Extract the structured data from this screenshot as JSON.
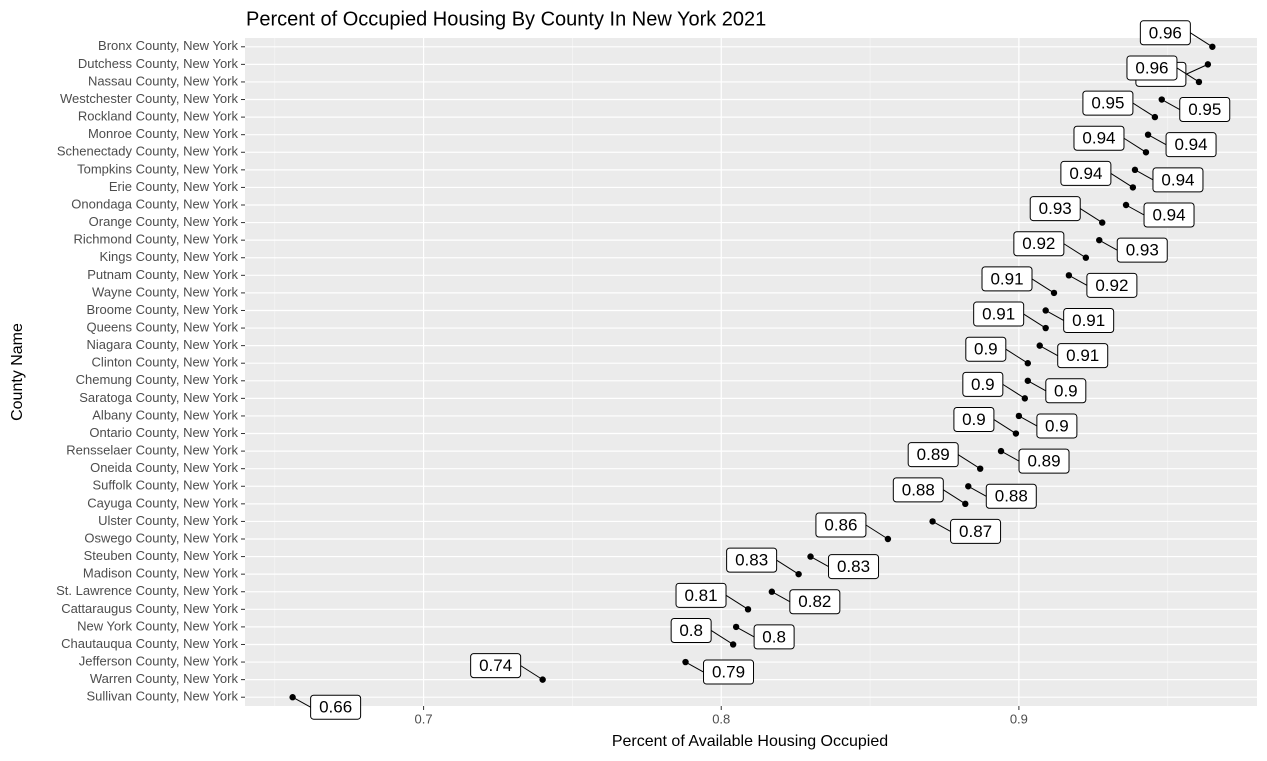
{
  "chart_data": {
    "type": "scatter",
    "title": "Percent of Occupied Housing By County In New York 2021",
    "x_label": "Percent of Available Housing Occupied",
    "y_label": "County Name",
    "categories": [
      "Bronx County, New York",
      "Dutchess County, New York",
      "Nassau County, New York",
      "Westchester County, New York",
      "Rockland County, New York",
      "Monroe County, New York",
      "Schenectady County, New York",
      "Tompkins County, New York",
      "Erie County, New York",
      "Onondaga County, New York",
      "Orange County, New York",
      "Richmond County, New York",
      "Kings County, New York",
      "Putnam County, New York",
      "Wayne County, New York",
      "Broome County, New York",
      "Queens County, New York",
      "Niagara County, New York",
      "Clinton County, New York",
      "Chemung County, New York",
      "Saratoga County, New York",
      "Albany County, New York",
      "Ontario County, New York",
      "Rensselaer County, New York",
      "Oneida County, New York",
      "Suffolk County, New York",
      "Cayuga County, New York",
      "Ulster County, New York",
      "Oswego County, New York",
      "Steuben County, New York",
      "Madison County, New York",
      "St. Lawrence County, New York",
      "Cattaraugus County, New York",
      "New York County, New York",
      "Chautauqua County, New York",
      "Jefferson County, New York",
      "Warren County, New York",
      "Sullivan County, New York"
    ],
    "values": [
      0.965,
      0.9635,
      0.9605,
      0.948,
      0.9457,
      0.9434,
      0.9427,
      0.939,
      0.9383,
      0.936,
      0.928,
      0.927,
      0.9225,
      0.9168,
      0.9118,
      0.909,
      0.909,
      0.907,
      0.903,
      0.903,
      0.902,
      0.9,
      0.899,
      0.894,
      0.887,
      0.883,
      0.882,
      0.871,
      0.856,
      0.83,
      0.826,
      0.817,
      0.809,
      0.805,
      0.804,
      0.788,
      0.74,
      0.656
    ],
    "value_labels": [
      "0.96",
      "0.96",
      "0.96",
      "0.95",
      "0.95",
      "0.94",
      "0.94",
      "0.94",
      "0.94",
      "0.94",
      "0.93",
      "0.93",
      "0.92",
      "0.92",
      "0.91",
      "0.91",
      "0.91",
      "0.91",
      "0.9",
      "0.9",
      "0.9",
      "0.9",
      "0.9",
      "0.89",
      "0.89",
      "0.88",
      "0.88",
      "0.87",
      "0.86",
      "0.83",
      "0.83",
      "0.82",
      "0.81",
      "0.8",
      "0.8",
      "0.79",
      "0.74",
      "0.66"
    ],
    "color": "#000000",
    "xlim": [
      0.64,
      0.98
    ],
    "xticks": [
      0.7,
      0.8,
      0.9
    ],
    "x_minor_grid": [
      0.65,
      0.75,
      0.85,
      0.95
    ],
    "grid": true
  }
}
